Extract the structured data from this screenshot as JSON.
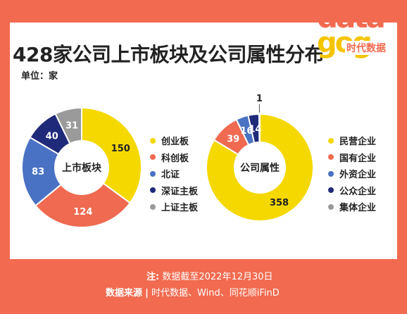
{
  "title": "428家公司上市板块及公司属性分布",
  "unit_label": "单位：家",
  "logo": {
    "top_text": "data",
    "bottom_text": "gog",
    "sub_text": "时代数据"
  },
  "footer": {
    "note_label": "注:",
    "note_text": "数据截至2022年12月30日",
    "source_label": "数据来源",
    "separator": "|",
    "source_text": "时代数据、Wind、同花顺iFinD"
  },
  "colors": {
    "frame": "#f26a4f",
    "yellow": "#f5d800",
    "red": "#ef6a50",
    "blue": "#4a72c4",
    "navy": "#1f2a7a",
    "gray": "#9a9a9a"
  },
  "chart_data": [
    {
      "type": "pie",
      "center_label": "上市板块",
      "categories": [
        "创业板",
        "科创板",
        "北证",
        "深证主板",
        "上证主板"
      ],
      "values": [
        150,
        124,
        83,
        40,
        31
      ],
      "colors": [
        "#f5d800",
        "#ef6a50",
        "#4a72c4",
        "#1f2a7a",
        "#9a9a9a"
      ]
    },
    {
      "type": "pie",
      "center_label": "公司属性",
      "categories": [
        "民营企业",
        "国有企业",
        "外资企业",
        "公众企业",
        "集体企业"
      ],
      "values": [
        358,
        39,
        16,
        14,
        1
      ],
      "colors": [
        "#f5d800",
        "#ef6a50",
        "#4a72c4",
        "#1f2a7a",
        "#9a9a9a"
      ]
    }
  ]
}
